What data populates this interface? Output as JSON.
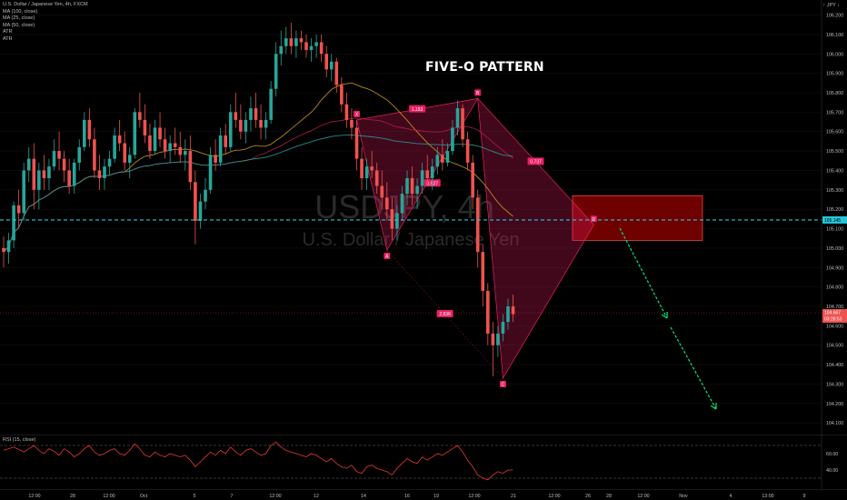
{
  "header": {
    "symbol": "U.S. Dollar / Japanese Yen, 4h, FXCM",
    "indicators": [
      "MA (100, close)",
      "MA (25, close)",
      "MA (50, close)",
      "ATR",
      "ATR"
    ],
    "currency": "↑ JPY ↓"
  },
  "watermark": {
    "ticker": "USDJPY, 4h",
    "name": "U.S. Dollar / Japanese Yen"
  },
  "annotation_title": "FIVE-O PATTERN",
  "rsi_label": "RSI (15, close)",
  "colors": {
    "up": "#26a69a",
    "down": "#ef5350",
    "pattern": "#e91e63",
    "zone": "#8b0000",
    "guide": "#00e676",
    "level": "#26c6da"
  },
  "chart_data": {
    "type": "candlestick",
    "yaxis_ticks": [
      "105.200",
      "105.100",
      "105.000",
      "104.900",
      "104.800",
      "104.700",
      "104.600",
      "104.500",
      "104.400",
      "104.300",
      "104.200",
      "104.100"
    ],
    "ytick_values": [
      106.2,
      106.1,
      106.0,
      105.9,
      105.8,
      105.7,
      105.6,
      105.5,
      105.4,
      105.3,
      105.2,
      105.1,
      105.0,
      104.9,
      104.8,
      104.7,
      104.6,
      104.5,
      104.4,
      104.3,
      104.2,
      104.1
    ],
    "ytick_labels": [
      "106.200",
      "106.100",
      "106.000",
      "105.900",
      "105.800",
      "105.700",
      "105.600",
      "105.500",
      "105.400",
      "105.300",
      "105.200",
      "105.100",
      "105.000",
      "104.900",
      "104.800",
      "104.700",
      "104.600",
      "104.500",
      "104.400",
      "104.300",
      "104.200",
      "104.100"
    ],
    "ylim": [
      104.04,
      106.24
    ],
    "xaxis_ticks": [
      "12:00",
      "28",
      "12:00",
      "Oct",
      "5",
      "7",
      "12:00",
      "12",
      "14",
      "16",
      "19",
      "12:00",
      "21",
      "12:00",
      "26",
      "28",
      "12:00",
      "Nov",
      "4",
      "13:00",
      "9"
    ],
    "current_price": 104.667,
    "current_price_label": "104.667",
    "countdown_label": "03:28:53",
    "level_line": 105.145,
    "level_label": "105.145",
    "ohlc": [
      [
        105.0,
        105.06,
        104.9,
        104.98
      ],
      [
        104.98,
        105.08,
        104.92,
        105.04
      ],
      [
        105.04,
        105.24,
        105.0,
        105.22
      ],
      [
        105.22,
        105.3,
        105.1,
        105.18
      ],
      [
        105.18,
        105.44,
        105.14,
        105.4
      ],
      [
        105.4,
        105.52,
        105.34,
        105.46
      ],
      [
        105.46,
        105.54,
        105.2,
        105.3
      ],
      [
        105.3,
        105.44,
        105.2,
        105.4
      ],
      [
        105.4,
        105.48,
        105.3,
        105.36
      ],
      [
        105.36,
        105.46,
        105.3,
        105.42
      ],
      [
        105.42,
        105.56,
        105.4,
        105.5
      ],
      [
        105.5,
        105.6,
        105.4,
        105.46
      ],
      [
        105.46,
        105.5,
        105.34,
        105.4
      ],
      [
        105.4,
        105.46,
        105.28,
        105.32
      ],
      [
        105.32,
        105.46,
        105.28,
        105.44
      ],
      [
        105.44,
        105.56,
        105.4,
        105.52
      ],
      [
        105.52,
        105.7,
        105.5,
        105.66
      ],
      [
        105.66,
        105.72,
        105.52,
        105.56
      ],
      [
        105.56,
        105.62,
        105.36,
        105.4
      ],
      [
        105.4,
        105.48,
        105.3,
        105.36
      ],
      [
        105.36,
        105.46,
        105.3,
        105.42
      ],
      [
        105.42,
        105.5,
        105.38,
        105.46
      ],
      [
        105.46,
        105.62,
        105.44,
        105.58
      ],
      [
        105.58,
        105.66,
        105.5,
        105.54
      ],
      [
        105.54,
        105.6,
        105.4,
        105.44
      ],
      [
        105.44,
        105.52,
        105.36,
        105.48
      ],
      [
        105.48,
        105.72,
        105.46,
        105.7
      ],
      [
        105.7,
        105.8,
        105.62,
        105.66
      ],
      [
        105.66,
        105.74,
        105.54,
        105.58
      ],
      [
        105.58,
        105.64,
        105.46,
        105.5
      ],
      [
        105.5,
        105.66,
        105.48,
        105.62
      ],
      [
        105.62,
        105.7,
        105.52,
        105.56
      ],
      [
        105.56,
        105.62,
        105.46,
        105.5
      ],
      [
        105.5,
        105.58,
        105.44,
        105.54
      ],
      [
        105.54,
        105.62,
        105.48,
        105.52
      ],
      [
        105.52,
        105.6,
        105.44,
        105.48
      ],
      [
        105.48,
        105.56,
        105.4,
        105.5
      ],
      [
        105.5,
        105.58,
        105.3,
        105.34
      ],
      [
        105.34,
        105.4,
        105.02,
        105.14
      ],
      [
        105.14,
        105.28,
        105.1,
        105.24
      ],
      [
        105.24,
        105.36,
        105.2,
        105.3
      ],
      [
        105.3,
        105.52,
        105.28,
        105.48
      ],
      [
        105.48,
        105.56,
        105.4,
        105.44
      ],
      [
        105.44,
        105.62,
        105.42,
        105.58
      ],
      [
        105.58,
        105.64,
        105.48,
        105.52
      ],
      [
        105.52,
        105.74,
        105.5,
        105.7
      ],
      [
        105.7,
        105.8,
        105.62,
        105.66
      ],
      [
        105.66,
        105.74,
        105.56,
        105.6
      ],
      [
        105.6,
        105.7,
        105.54,
        105.66
      ],
      [
        105.66,
        105.78,
        105.6,
        105.72
      ],
      [
        105.72,
        105.8,
        105.62,
        105.66
      ],
      [
        105.66,
        105.74,
        105.56,
        105.62
      ],
      [
        105.62,
        105.7,
        105.56,
        105.66
      ],
      [
        105.66,
        105.86,
        105.64,
        105.82
      ],
      [
        105.82,
        106.06,
        105.78,
        106.0
      ],
      [
        106.0,
        106.12,
        105.94,
        106.04
      ],
      [
        106.04,
        106.14,
        106.0,
        106.08
      ],
      [
        106.08,
        106.16,
        106.0,
        106.04
      ],
      [
        106.04,
        106.12,
        105.98,
        106.08
      ],
      [
        106.08,
        106.12,
        106.02,
        106.06
      ],
      [
        106.06,
        106.1,
        105.98,
        106.02
      ],
      [
        106.02,
        106.08,
        105.96,
        106.04
      ],
      [
        106.04,
        106.1,
        105.98,
        106.06
      ],
      [
        106.06,
        106.1,
        105.96,
        106.0
      ],
      [
        106.0,
        106.04,
        105.88,
        105.92
      ],
      [
        105.92,
        106.0,
        105.86,
        105.96
      ],
      [
        105.96,
        105.98,
        105.8,
        105.84
      ],
      [
        105.84,
        105.88,
        105.7,
        105.74
      ],
      [
        105.74,
        105.8,
        105.62,
        105.66
      ],
      [
        105.66,
        105.72,
        105.56,
        105.62
      ],
      [
        105.62,
        105.66,
        105.4,
        105.46
      ],
      [
        105.46,
        105.52,
        105.3,
        105.36
      ],
      [
        105.36,
        105.46,
        105.3,
        105.42
      ],
      [
        105.42,
        105.5,
        105.36,
        105.4
      ],
      [
        105.4,
        105.44,
        105.28,
        105.32
      ],
      [
        105.32,
        105.4,
        105.2,
        105.26
      ],
      [
        105.26,
        105.34,
        105.14,
        105.2
      ],
      [
        105.2,
        105.26,
        105.04,
        105.1
      ],
      [
        105.1,
        105.22,
        105.04,
        105.18
      ],
      [
        105.18,
        105.32,
        105.14,
        105.28
      ],
      [
        105.28,
        105.4,
        105.22,
        105.36
      ],
      [
        105.36,
        105.42,
        105.22,
        105.28
      ],
      [
        105.28,
        105.36,
        105.2,
        105.32
      ],
      [
        105.32,
        105.44,
        105.28,
        105.4
      ],
      [
        105.4,
        105.48,
        105.32,
        105.36
      ],
      [
        105.36,
        105.46,
        105.3,
        105.42
      ],
      [
        105.42,
        105.52,
        105.38,
        105.48
      ],
      [
        105.48,
        105.56,
        105.4,
        105.44
      ],
      [
        105.44,
        105.54,
        105.42,
        105.5
      ],
      [
        105.5,
        105.66,
        105.48,
        105.62
      ],
      [
        105.62,
        105.76,
        105.58,
        105.72
      ],
      [
        105.72,
        105.74,
        105.52,
        105.56
      ],
      [
        105.56,
        105.6,
        105.4,
        105.44
      ],
      [
        105.44,
        105.48,
        105.2,
        105.26
      ],
      [
        105.26,
        105.3,
        104.9,
        104.98
      ],
      [
        104.98,
        105.02,
        104.7,
        104.78
      ],
      [
        104.78,
        104.82,
        104.5,
        104.56
      ],
      [
        104.56,
        104.62,
        104.34,
        104.5
      ],
      [
        104.5,
        104.6,
        104.44,
        104.56
      ],
      [
        104.56,
        104.66,
        104.52,
        104.62
      ],
      [
        104.62,
        104.74,
        104.58,
        104.7
      ],
      [
        104.7,
        104.76,
        104.62,
        104.66
      ]
    ],
    "pattern_labels": [
      "X",
      "A",
      "B",
      "C",
      "D"
    ],
    "pattern_points": [
      [
        0,
        105.66
      ],
      [
        0,
        104.99
      ],
      [
        0,
        105.77
      ],
      [
        0,
        104.33
      ],
      [
        0,
        105.12
      ]
    ],
    "ratio_labels": [
      "1.153",
      "2.836",
      "0.527",
      "0.737"
    ],
    "rsi": {
      "yticks": [
        60.0,
        40.0
      ],
      "ytick_labels": [
        "60.00",
        "40.00"
      ],
      "levels": [
        70,
        30
      ],
      "ylim": [
        20,
        80
      ],
      "values": [
        64,
        66,
        68,
        65,
        62,
        66,
        70,
        64,
        60,
        66,
        63,
        58,
        66,
        62,
        56,
        60,
        66,
        70,
        62,
        58,
        60,
        64,
        66,
        60,
        58,
        64,
        72,
        66,
        58,
        56,
        62,
        58,
        56,
        60,
        58,
        56,
        58,
        52,
        44,
        50,
        56,
        62,
        58,
        64,
        60,
        68,
        62,
        58,
        64,
        66,
        62,
        58,
        60,
        70,
        74,
        68,
        64,
        62,
        60,
        58,
        56,
        60,
        58,
        54,
        50,
        54,
        48,
        44,
        42,
        46,
        38,
        36,
        44,
        46,
        42,
        40,
        38,
        34,
        42,
        48,
        54,
        50,
        48,
        56,
        52,
        56,
        60,
        58,
        62,
        66,
        70,
        62,
        52,
        44,
        34,
        30,
        28,
        34,
        38,
        36,
        40,
        40
      ]
    }
  }
}
